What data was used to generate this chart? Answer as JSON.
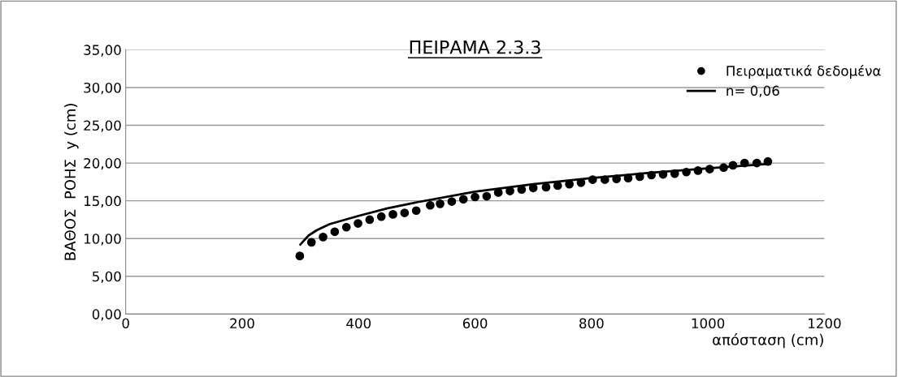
{
  "chart_data": {
    "type": "scatter",
    "title": "ΠΕΙΡΑΜΑ 2.3.3",
    "xlabel": "απόσταση (cm)",
    "ylabel": "ΒΑΘΟΣ  ΡΟΗΣ  y (cm)",
    "xlim": [
      0,
      1200
    ],
    "xticks": [
      0,
      200,
      400,
      600,
      800,
      1000,
      1200
    ],
    "ylim": [
      0,
      35
    ],
    "yticks": [
      {
        "value": 0,
        "label": "0,00"
      },
      {
        "value": 5,
        "label": "5,00"
      },
      {
        "value": 10,
        "label": "10,00"
      },
      {
        "value": 15,
        "label": "15,00"
      },
      {
        "value": 20,
        "label": "20,00"
      },
      {
        "value": 25,
        "label": "25,00"
      },
      {
        "value": 30,
        "label": "30,00"
      },
      {
        "value": 35,
        "label": "35,00"
      }
    ],
    "grid": "y",
    "legend": "top right",
    "series": [
      {
        "name": "Πειραματικά δεδομένα",
        "marker": "circle",
        "color": "#000000",
        "x": [
          299,
          319,
          339,
          359,
          379,
          399,
          419,
          439,
          459,
          479,
          499,
          523,
          540,
          560,
          580,
          600,
          620,
          640,
          660,
          680,
          700,
          722,
          742,
          762,
          782,
          802,
          823,
          843,
          863,
          883,
          903,
          923,
          943,
          963,
          983,
          1003,
          1027,
          1043,
          1063,
          1084,
          1103
        ],
        "values": [
          7.7,
          9.5,
          10.2,
          10.9,
          11.5,
          12.0,
          12.5,
          12.9,
          13.2,
          13.4,
          13.7,
          14.4,
          14.6,
          14.9,
          15.2,
          15.5,
          15.6,
          16.1,
          16.3,
          16.5,
          16.7,
          16.8,
          17.0,
          17.2,
          17.4,
          17.8,
          17.8,
          17.9,
          18.0,
          18.2,
          18.4,
          18.5,
          18.6,
          18.8,
          19.0,
          19.2,
          19.4,
          19.7,
          20.0,
          20.0,
          20.2
        ]
      },
      {
        "name": "n= 0,06",
        "type": "line",
        "marker": "none",
        "line_style": "solid",
        "color": "#000000",
        "x": [
          300,
          314,
          328,
          350,
          400,
          450,
          500,
          600,
          700,
          800,
          900,
          1000,
          1107
        ],
        "values": [
          9.2,
          10.4,
          11.1,
          11.9,
          13.0,
          14.0,
          14.8,
          16.2,
          17.2,
          18.0,
          18.7,
          19.3,
          19.9
        ]
      }
    ]
  }
}
